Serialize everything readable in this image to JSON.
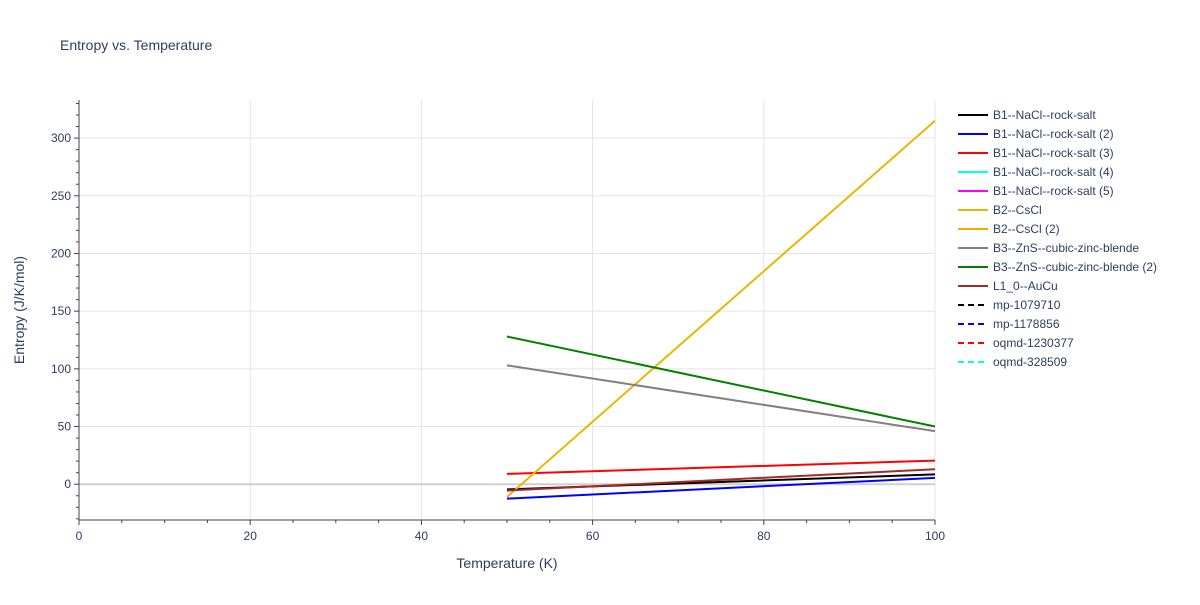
{
  "chart_data": {
    "type": "line",
    "title": "Entropy vs. Temperature",
    "xlabel": "Temperature (K)",
    "ylabel": "Entropy (J/K/mol)",
    "xlim": [
      0,
      100
    ],
    "ylim": [
      -31,
      333
    ],
    "x_ticks": [
      0,
      20,
      40,
      60,
      80,
      100
    ],
    "y_ticks": [
      0,
      50,
      100,
      150,
      200,
      250,
      300
    ],
    "grid": true,
    "legend_position": "right",
    "series": [
      {
        "name": "B1--NaCl--rock-salt",
        "color": "#000000",
        "dash": "solid",
        "x": [
          50,
          100
        ],
        "y": [
          -4.5,
          8.5
        ]
      },
      {
        "name": "B1--NaCl--rock-salt (2)",
        "color": "#0000ff",
        "dash": "solid",
        "x": [
          50,
          100
        ],
        "y": [
          -12.5,
          5.5
        ]
      },
      {
        "name": "B1--NaCl--rock-salt (3)",
        "color": "#ff0000",
        "dash": "solid",
        "x": [
          50,
          100
        ],
        "y": [
          9,
          20.5
        ]
      },
      {
        "name": "B1--NaCl--rock-salt (4)",
        "color": "#00ffff",
        "dash": "solid",
        "x": [],
        "y": []
      },
      {
        "name": "B1--NaCl--rock-salt (5)",
        "color": "#ff00ff",
        "dash": "solid",
        "x": [],
        "y": []
      },
      {
        "name": "B2--CsCl",
        "color": "#e6b800",
        "dash": "solid",
        "x": [
          50,
          100
        ],
        "y": [
          -11,
          315
        ]
      },
      {
        "name": "B2--CsCl (2)",
        "color": "#ffa500",
        "dash": "solid",
        "x": [],
        "y": []
      },
      {
        "name": "B3--ZnS--cubic-zinc-blende",
        "color": "#808080",
        "dash": "solid",
        "x": [
          50,
          100
        ],
        "y": [
          103,
          46
        ]
      },
      {
        "name": "B3--ZnS--cubic-zinc-blende (2)",
        "color": "#008000",
        "dash": "solid",
        "x": [
          50,
          100
        ],
        "y": [
          128,
          50
        ]
      },
      {
        "name": "L1_0--AuCu",
        "color": "#a52a2a",
        "dash": "solid",
        "x": [
          50,
          100
        ],
        "y": [
          -5.5,
          13
        ]
      },
      {
        "name": "mp-1079710",
        "color": "#000000",
        "dash": "dash",
        "x": [],
        "y": []
      },
      {
        "name": "mp-1178856",
        "color": "#0000ff",
        "dash": "dash",
        "x": [],
        "y": []
      },
      {
        "name": "oqmd-1230377",
        "color": "#ff0000",
        "dash": "dash",
        "x": [],
        "y": []
      },
      {
        "name": "oqmd-328509",
        "color": "#00ffff",
        "dash": "dash",
        "x": [],
        "y": []
      }
    ]
  }
}
